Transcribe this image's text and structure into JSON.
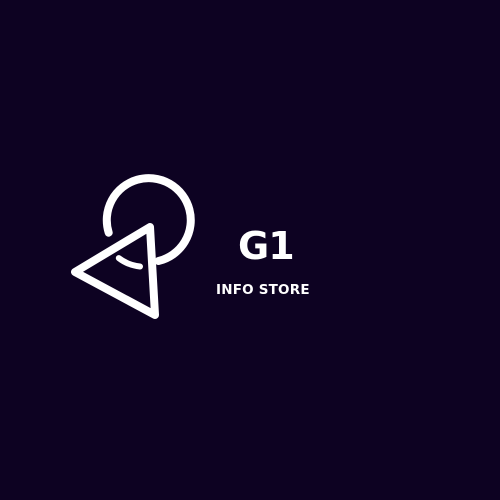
{
  "colors": {
    "background": "#0d0222",
    "foreground": "#ffffff"
  },
  "logo": {
    "icon": "circle-and-triangle-icon",
    "name": "G1",
    "tagline": "INFO STORE"
  }
}
